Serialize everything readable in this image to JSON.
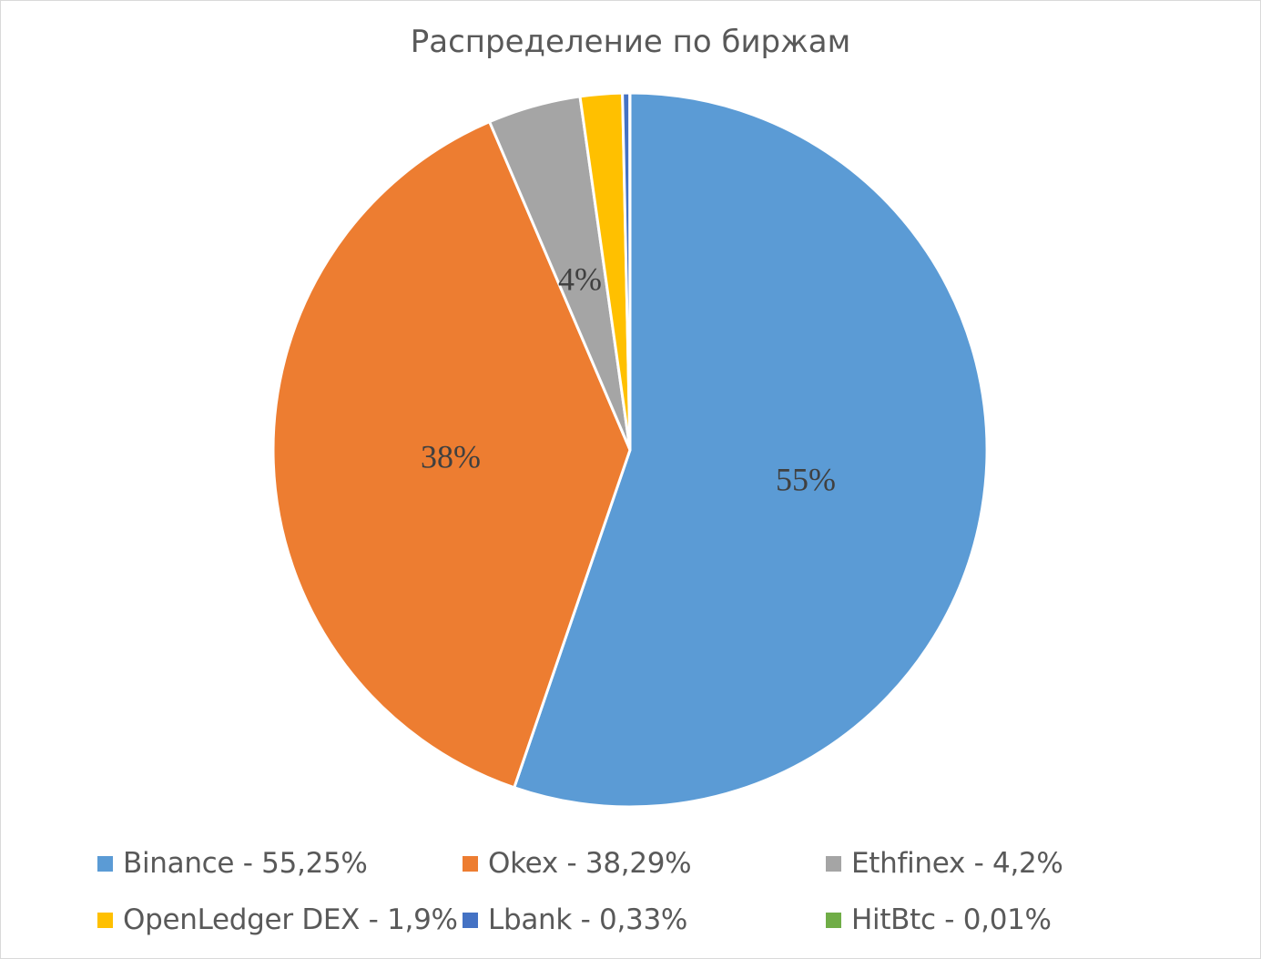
{
  "chart_data": {
    "type": "pie",
    "title": "Распределение по биржам",
    "slices": [
      {
        "legend": "Binance - 55,25%",
        "value": 55.25,
        "data_label": "55%",
        "color": "#5b9bd5"
      },
      {
        "legend": "Okex - 38,29%",
        "value": 38.29,
        "data_label": "38%",
        "color": "#ed7d31"
      },
      {
        "legend": "Ethfinex - 4,2%",
        "value": 4.2,
        "data_label": "4%",
        "color": "#a5a5a5"
      },
      {
        "legend": "OpenLedger DEX - 1,9%",
        "value": 1.9,
        "data_label": "",
        "color": "#ffc000"
      },
      {
        "legend": "Lbank - 0,33%",
        "value": 0.33,
        "data_label": "",
        "color": "#4472c4"
      },
      {
        "legend": "HitBtc - 0,01%",
        "value": 0.01,
        "data_label": "",
        "color": "#70ad47"
      }
    ],
    "legend_position": "bottom",
    "start_angle": "12 o'clock",
    "direction": "clockwise"
  }
}
